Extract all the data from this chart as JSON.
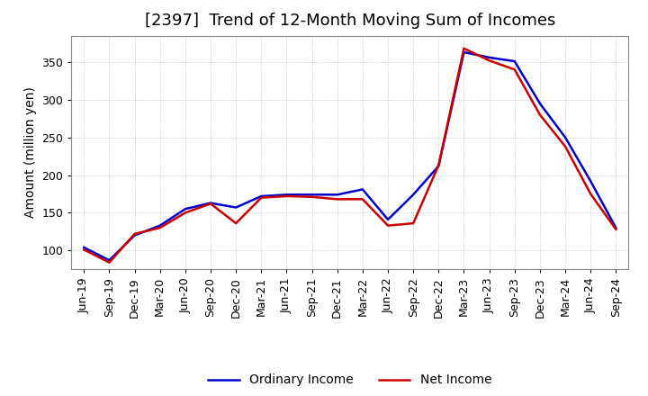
{
  "title": "[2397]  Trend of 12-Month Moving Sum of Incomes",
  "ylabel": "Amount (million yen)",
  "x_labels": [
    "Jun-19",
    "Sep-19",
    "Dec-19",
    "Mar-20",
    "Jun-20",
    "Sep-20",
    "Dec-20",
    "Mar-21",
    "Jun-21",
    "Sep-21",
    "Dec-21",
    "Mar-22",
    "Jun-22",
    "Sep-22",
    "Dec-22",
    "Mar-23",
    "Jun-23",
    "Sep-23",
    "Dec-23",
    "Mar-24",
    "Jun-24",
    "Sep-24"
  ],
  "ordinary_income": [
    104,
    87,
    120,
    133,
    155,
    163,
    157,
    172,
    174,
    174,
    174,
    181,
    141,
    174,
    212,
    363,
    356,
    351,
    295,
    250,
    192,
    130
  ],
  "net_income": [
    101,
    84,
    122,
    130,
    150,
    162,
    136,
    170,
    172,
    171,
    168,
    168,
    133,
    136,
    213,
    368,
    352,
    340,
    280,
    238,
    175,
    128
  ],
  "ordinary_color": "#0000cc",
  "net_color": "#cc0000",
  "ylim_min": 75,
  "ylim_max": 385,
  "yticks": [
    100,
    150,
    200,
    250,
    300,
    350
  ],
  "background_color": "#ffffff",
  "grid_color": "#b0b0b0",
  "title_fontsize": 13,
  "ylabel_fontsize": 10,
  "tick_fontsize": 9,
  "legend_fontsize": 10,
  "linewidth": 1.8
}
